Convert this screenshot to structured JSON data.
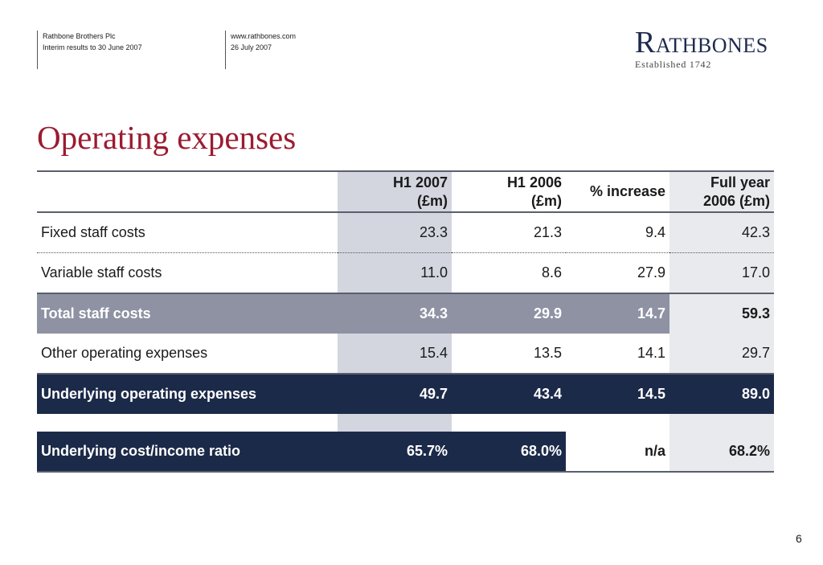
{
  "header": {
    "company": "Rathbone Brothers Plc",
    "report": "Interim results to 30 June 2007",
    "website": "www.rathbones.com",
    "date": "26 July 2007"
  },
  "logo": {
    "name_first": "R",
    "name_rest": "ATHBONES",
    "established": "Established 1742",
    "color": "#1d2a4d"
  },
  "title": "Operating expenses",
  "table": {
    "columns": [
      {
        "line1": "H1 2007",
        "line2": "(£m)"
      },
      {
        "line1": "H1 2006",
        "line2": "(£m)"
      },
      {
        "line1": "% increase",
        "line2": ""
      },
      {
        "line1": "Full year",
        "line2": "2006 (£m)"
      }
    ],
    "rows": [
      {
        "label": "Fixed staff costs",
        "h1_2007": "23.3",
        "h1_2006": "21.3",
        "pct": "9.4",
        "full": "42.3"
      },
      {
        "label": "Variable staff costs",
        "h1_2007": "11.0",
        "h1_2006": "8.6",
        "pct": "27.9",
        "full": "17.0"
      },
      {
        "label": "Total staff costs",
        "h1_2007": "34.3",
        "h1_2006": "29.9",
        "pct": "14.7",
        "full": "59.3"
      },
      {
        "label": "Other operating expenses",
        "h1_2007": "15.4",
        "h1_2006": "13.5",
        "pct": "14.1",
        "full": "29.7"
      },
      {
        "label": "Underlying operating expenses",
        "h1_2007": "49.7",
        "h1_2006": "43.4",
        "pct": "14.5",
        "full": "89.0"
      },
      {
        "label": "Underlying cost/income ratio",
        "h1_2007": "65.7%",
        "h1_2006": "68.0%",
        "pct": "n/a",
        "full": "68.2%"
      }
    ]
  },
  "colors": {
    "title": "#9b1b30",
    "navy": "#1c2a49",
    "grey_band": "#8e92a3",
    "h1_column": "#d3d6df",
    "full_year_column": "#e8eaee"
  },
  "page_number": "6"
}
